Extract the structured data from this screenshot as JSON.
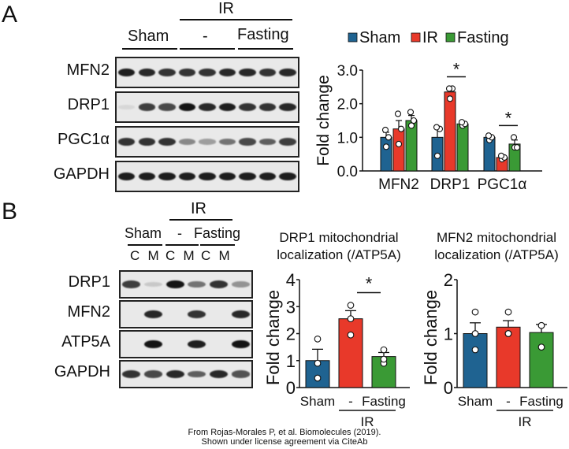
{
  "panels": {
    "A": {
      "letter": "A",
      "blot": {
        "group_top": "IR",
        "groups": [
          "Sham",
          "-",
          "Fasting"
        ],
        "rows": [
          "MFN2",
          "DRP1",
          "PGC1α",
          "GAPDH"
        ],
        "intensities": [
          [
            0.95,
            0.9,
            0.85,
            0.85,
            0.85,
            0.9,
            0.9,
            0.85,
            0.9
          ],
          [
            0.05,
            0.8,
            0.75,
            1.0,
            0.9,
            0.95,
            0.85,
            0.85,
            0.9
          ],
          [
            0.85,
            0.85,
            0.85,
            0.45,
            0.35,
            0.55,
            0.75,
            0.65,
            0.8
          ],
          [
            0.95,
            0.95,
            0.95,
            0.95,
            0.95,
            0.95,
            0.95,
            0.95,
            0.95
          ]
        ]
      }
    },
    "B": {
      "letter": "B",
      "blot": {
        "group_top": "IR",
        "groups": [
          "Sham",
          "-",
          "Fasting"
        ],
        "fractions": [
          "C",
          "M",
          "C",
          "M",
          "C",
          "M"
        ],
        "rows": [
          "DRP1",
          "MFN2",
          "ATP5A",
          "GAPDH"
        ],
        "intensities": [
          [
            0.8,
            0.15,
            1.0,
            0.55,
            0.85,
            0.4
          ],
          [
            0.0,
            0.9,
            0.0,
            0.85,
            0.0,
            0.9
          ],
          [
            0.0,
            1.0,
            0.0,
            0.95,
            0.0,
            1.0
          ],
          [
            0.85,
            0.75,
            0.9,
            0.65,
            0.9,
            0.7
          ]
        ]
      }
    }
  },
  "colors": {
    "sham": "#1f6391",
    "ir": "#e8392a",
    "fasting": "#3a9a35"
  },
  "chart_data": [
    {
      "type": "bar",
      "panel": "A",
      "title": "",
      "xlabel": "",
      "ylabel": "Fold change",
      "ylim": [
        0,
        3.0
      ],
      "yticks": [
        "0.0",
        "1.0",
        "2.0",
        "3.0"
      ],
      "categories": [
        "MFN2",
        "DRP1",
        "PGC1α"
      ],
      "legend": {
        "position": "top",
        "entries": [
          "Sham",
          "IR",
          "Fasting"
        ]
      },
      "series": [
        {
          "name": "Sham",
          "values": [
            1.0,
            1.0,
            1.0
          ],
          "errors": [
            0.15,
            0.3,
            0.05
          ],
          "points": [
            [
              0.72,
              1.0,
              1.22
            ],
            [
              0.45,
              1.25,
              1.3
            ],
            [
              0.92,
              1.0,
              1.05
            ]
          ]
        },
        {
          "name": "IR",
          "values": [
            1.25,
            2.35,
            0.4
          ],
          "errors": [
            0.25,
            0.1,
            0.05
          ],
          "points": [
            [
              0.8,
              1.25,
              1.7
            ],
            [
              2.15,
              2.45,
              2.45
            ],
            [
              0.35,
              0.4,
              0.45
            ]
          ]
        },
        {
          "name": "Fasting",
          "values": [
            1.5,
            1.4,
            0.8
          ],
          "errors": [
            0.15,
            0.05,
            0.12
          ],
          "points": [
            [
              1.35,
              1.5,
              1.75
            ],
            [
              1.35,
              1.4,
              1.45
            ],
            [
              0.7,
              0.7,
              1.0
            ]
          ]
        }
      ],
      "annotations": [
        {
          "text": "*",
          "category": "DRP1",
          "between": [
            "IR",
            "Fasting"
          ]
        },
        {
          "text": "*",
          "category": "PGC1α",
          "between": [
            "IR",
            "Fasting"
          ]
        }
      ]
    },
    {
      "type": "bar",
      "panel": "B-left",
      "title": "DRP1 mitochondrial localization (/ATP5A)",
      "title_lines": [
        "DRP1 mitochondrial",
        "localization (/ATP5A)"
      ],
      "ylabel": "Fold change",
      "ylim": [
        0,
        4
      ],
      "yticks": [
        "0",
        "1",
        "2",
        "3",
        "4"
      ],
      "categories": [
        "Sham",
        "-",
        "Fasting"
      ],
      "group_label": "IR",
      "values": [
        1.0,
        2.55,
        1.15
      ],
      "errors": [
        0.42,
        0.3,
        0.15
      ],
      "points": [
        [
          0.35,
          0.9,
          1.8
        ],
        [
          1.95,
          2.55,
          3.05
        ],
        [
          0.9,
          1.05,
          1.4
        ]
      ],
      "annotations": [
        {
          "text": "*",
          "between": [
            "-",
            "Fasting"
          ]
        }
      ]
    },
    {
      "type": "bar",
      "panel": "B-right",
      "title": "MFN2 mitochondrial localization (/ATP5A)",
      "title_lines": [
        "MFN2 mitochondrial",
        "localization (/ATP5A)"
      ],
      "ylabel": "Fold change",
      "ylim": [
        0,
        2
      ],
      "yticks": [
        "0",
        "1",
        "2"
      ],
      "categories": [
        "Sham",
        "-",
        "Fasting"
      ],
      "group_label": "IR",
      "values": [
        1.0,
        1.12,
        1.02
      ],
      "errors": [
        0.2,
        0.12,
        0.15
      ],
      "points": [
        [
          0.7,
          1.0,
          1.4
        ],
        [
          1.0,
          1.0,
          1.4
        ],
        [
          0.75,
          1.15,
          1.15
        ]
      ],
      "annotations": []
    }
  ],
  "credit": {
    "line1": "From Rojas-Morales P, et al. Biomolecules (2019).",
    "line2": "Shown under license agreement via CiteAb"
  }
}
